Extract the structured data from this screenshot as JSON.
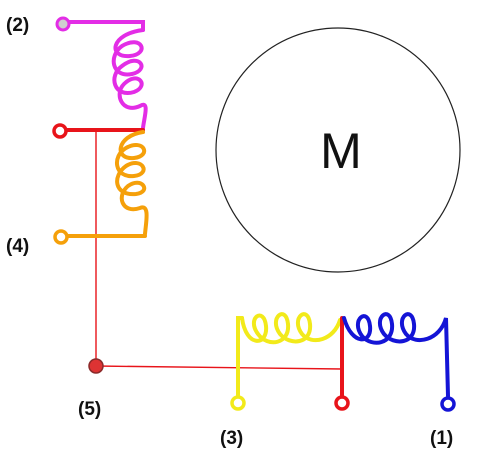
{
  "diagram": {
    "motor": {
      "label": "M"
    },
    "terminals": [
      {
        "id": "t2",
        "label": "(2)",
        "color": "#e32de6"
      },
      {
        "id": "t4",
        "label": "(4)",
        "color": "#f5a00a"
      },
      {
        "id": "t5",
        "label": "(5)",
        "color": "#e8141a"
      },
      {
        "id": "t3",
        "label": "(3)",
        "color": "#f2ea1a"
      },
      {
        "id": "t1",
        "label": "(1)",
        "color": "#1414d6"
      }
    ],
    "colors": {
      "magenta": "#e32de6",
      "red": "#e8141a",
      "orange": "#f5a00a",
      "yellow": "#f2ea1a",
      "blue": "#1414d6",
      "outline": "#222222"
    }
  }
}
